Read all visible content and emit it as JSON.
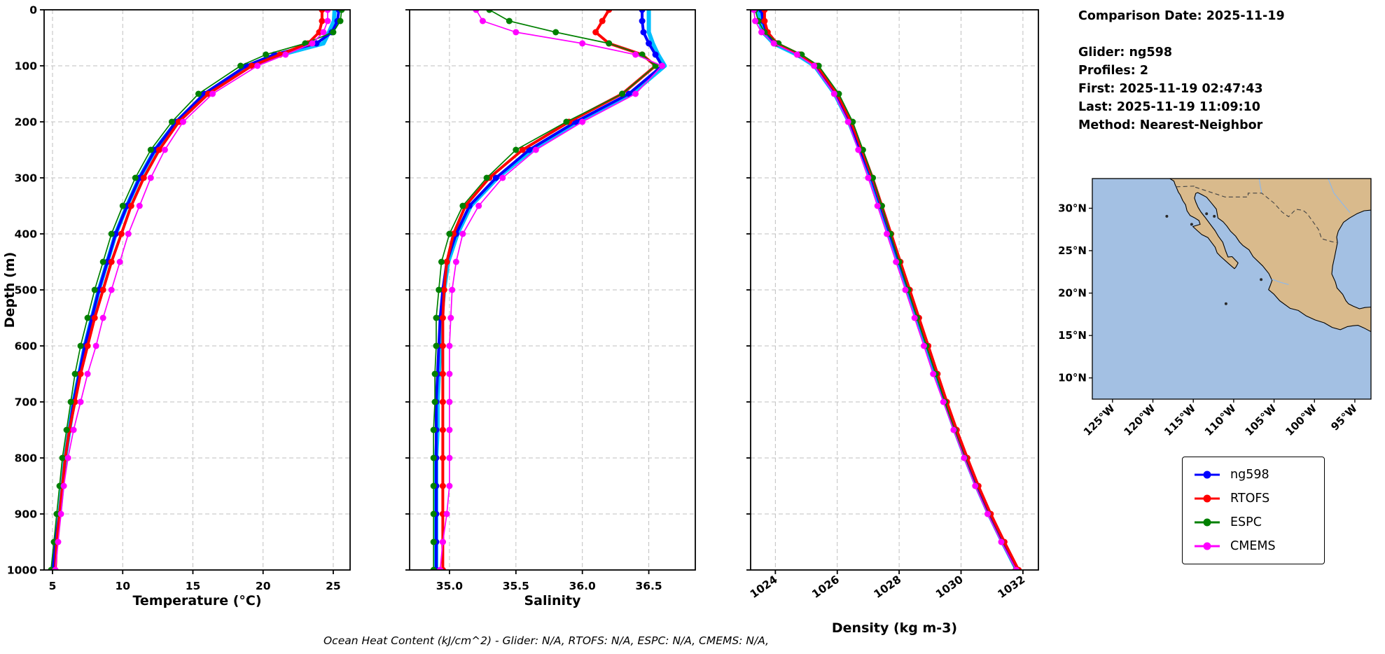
{
  "info_panel": {
    "comparison_date": "Comparison Date: 2025-11-19",
    "glider": "Glider: ng598",
    "profiles": "Profiles: 2",
    "first": "First: 2025-11-19 02:47:43",
    "last": "Last: 2025-11-19 11:09:10",
    "method": "Method: Nearest-Neighbor"
  },
  "caption": "Ocean Heat Content (kJ/cm^2) - Glider: N/A,  RTOFS: N/A,  ESPC: N/A,  CMEMS: N/A,",
  "ylabel": "Depth (m)",
  "ylim": [
    0,
    1000
  ],
  "yticks": [
    {
      "v": 0,
      "label": "0"
    },
    {
      "v": 100,
      "label": "100"
    },
    {
      "v": 200,
      "label": "200"
    },
    {
      "v": 300,
      "label": "300"
    },
    {
      "v": 400,
      "label": "400"
    },
    {
      "v": 500,
      "label": "500"
    },
    {
      "v": 600,
      "label": "600"
    },
    {
      "v": 700,
      "label": "700"
    },
    {
      "v": 800,
      "label": "800"
    },
    {
      "v": 900,
      "label": "900"
    },
    {
      "v": 1000,
      "label": "1000"
    }
  ],
  "depths": [
    0,
    20,
    40,
    60,
    80,
    100,
    150,
    200,
    250,
    300,
    350,
    400,
    450,
    500,
    550,
    600,
    650,
    700,
    750,
    800,
    850,
    900,
    950,
    1000
  ],
  "series_meta": [
    {
      "name": "ng598_raw",
      "color": "#00bfff",
      "line_width": 6,
      "marker_radius": 0,
      "in_legend": false
    },
    {
      "name": "ng598",
      "color": "#0000ff",
      "line_width": 4,
      "marker_radius": 4.5,
      "in_legend": true
    },
    {
      "name": "RTOFS",
      "color": "#ff0000",
      "line_width": 4,
      "marker_radius": 4.5,
      "in_legend": true
    },
    {
      "name": "ESPC",
      "color": "#008000",
      "line_width": 1.7,
      "marker_radius": 4.5,
      "in_legend": true
    },
    {
      "name": "CMEMS",
      "color": "#ff00ff",
      "line_width": 1.7,
      "marker_radius": 4.5,
      "in_legend": true
    }
  ],
  "legend": {
    "entries": [
      {
        "label": "ng598",
        "color": "#0000ff"
      },
      {
        "label": "RTOFS",
        "color": "#ff0000"
      },
      {
        "label": "ESPC",
        "color": "#008000"
      },
      {
        "label": "CMEMS",
        "color": "#ff00ff"
      }
    ]
  },
  "chart_data": [
    {
      "type": "line",
      "name": "temperature",
      "xlabel": "Temperature (°C)",
      "xlim": [
        4.4,
        26.2
      ],
      "xticks": [
        {
          "v": 5,
          "label": "5"
        },
        {
          "v": 10,
          "label": "10"
        },
        {
          "v": 15,
          "label": "15"
        },
        {
          "v": 20,
          "label": "20"
        },
        {
          "v": 25,
          "label": "25"
        }
      ],
      "xtick_rotation": 0,
      "grid": true,
      "series": [
        {
          "name": "ng598_raw",
          "values": [
            25.1,
            25.05,
            24.7,
            24.3,
            21.3,
            19.0,
            15.9,
            13.85,
            12.3,
            11.2,
            10.3,
            9.5,
            8.9,
            8.3,
            7.8,
            7.3,
            6.9,
            6.5,
            6.2,
            5.9,
            5.7,
            5.5,
            5.2,
            5.0
          ]
        },
        {
          "name": "ng598",
          "values": [
            25.4,
            25.3,
            24.9,
            23.8,
            20.8,
            18.8,
            15.8,
            13.8,
            12.3,
            11.2,
            10.3,
            9.5,
            8.9,
            8.3,
            7.8,
            7.3,
            6.9,
            6.5,
            6.2,
            5.9,
            5.7,
            5.5,
            5.2,
            5.0
          ]
        },
        {
          "name": "RTOFS",
          "values": [
            24.2,
            24.2,
            24.0,
            23.2,
            21.2,
            19.2,
            16.1,
            14.0,
            12.6,
            11.5,
            10.6,
            9.9,
            9.2,
            8.6,
            8.0,
            7.5,
            7.0,
            6.6,
            6.2,
            5.9,
            5.7,
            5.5,
            5.3,
            5.2
          ]
        },
        {
          "name": "ESPC",
          "values": [
            25.6,
            25.5,
            25.0,
            23.0,
            20.2,
            18.4,
            15.4,
            13.5,
            12.0,
            10.9,
            10.0,
            9.2,
            8.6,
            8.0,
            7.5,
            7.0,
            6.6,
            6.3,
            6.0,
            5.7,
            5.5,
            5.3,
            5.1,
            4.9
          ]
        },
        {
          "name": "CMEMS",
          "values": [
            24.6,
            24.6,
            24.3,
            23.5,
            21.6,
            19.6,
            16.4,
            14.3,
            13.0,
            12.0,
            11.2,
            10.4,
            9.8,
            9.2,
            8.6,
            8.1,
            7.5,
            7.0,
            6.5,
            6.1,
            5.8,
            5.6,
            5.4,
            5.2
          ]
        }
      ]
    },
    {
      "type": "line",
      "name": "salinity",
      "xlabel": "Salinity",
      "xlim": [
        34.7,
        36.85
      ],
      "xticks": [
        {
          "v": 35.0,
          "label": "35.0"
        },
        {
          "v": 35.5,
          "label": "35.5"
        },
        {
          "v": 36.0,
          "label": "36.0"
        },
        {
          "v": 36.5,
          "label": "36.5"
        }
      ],
      "xtick_rotation": 0,
      "grid": true,
      "series": [
        {
          "name": "ng598_raw",
          "values": [
            36.5,
            36.5,
            36.5,
            36.53,
            36.57,
            36.62,
            36.37,
            35.97,
            35.62,
            35.36,
            35.16,
            35.06,
            34.99,
            34.96,
            34.94,
            34.93,
            34.92,
            34.91,
            34.91,
            34.9,
            34.9,
            34.9,
            34.9,
            34.9
          ]
        },
        {
          "name": "ng598",
          "values": [
            36.45,
            36.45,
            36.46,
            36.5,
            36.55,
            36.6,
            36.35,
            35.95,
            35.6,
            35.35,
            35.15,
            35.05,
            34.98,
            34.95,
            34.93,
            34.92,
            34.91,
            34.9,
            34.9,
            34.9,
            34.9,
            34.9,
            34.9,
            34.9
          ]
        },
        {
          "name": "RTOFS",
          "values": [
            36.2,
            36.15,
            36.1,
            36.2,
            36.45,
            36.55,
            36.3,
            35.9,
            35.55,
            35.3,
            35.12,
            35.03,
            34.98,
            34.96,
            34.95,
            34.95,
            34.95,
            34.95,
            34.95,
            34.95,
            34.95,
            34.95,
            34.95,
            34.95
          ]
        },
        {
          "name": "ESPC",
          "values": [
            35.3,
            35.45,
            35.8,
            36.2,
            36.45,
            36.55,
            36.3,
            35.88,
            35.5,
            35.28,
            35.1,
            35.0,
            34.94,
            34.92,
            34.9,
            34.9,
            34.89,
            34.89,
            34.88,
            34.88,
            34.88,
            34.88,
            34.88,
            34.88
          ]
        },
        {
          "name": "CMEMS",
          "values": [
            35.2,
            35.25,
            35.5,
            36.0,
            36.4,
            36.6,
            36.4,
            36.0,
            35.65,
            35.4,
            35.22,
            35.1,
            35.05,
            35.02,
            35.01,
            35.0,
            35.0,
            35.0,
            35.0,
            35.0,
            35.0,
            34.98,
            34.95,
            34.93
          ]
        }
      ]
    },
    {
      "type": "line",
      "name": "density",
      "xlabel": "Density (kg m-3)",
      "xlim": [
        1023.2,
        1032.5
      ],
      "xticks": [
        {
          "v": 1024,
          "label": "1024"
        },
        {
          "v": 1026,
          "label": "1026"
        },
        {
          "v": 1028,
          "label": "1028"
        },
        {
          "v": 1030,
          "label": "1030"
        },
        {
          "v": 1032,
          "label": "1032"
        }
      ],
      "xtick_rotation": -35,
      "grid": true,
      "series": [
        {
          "name": "ng598_raw",
          "values": [
            1023.45,
            1023.5,
            1023.6,
            1023.95,
            1024.7,
            1025.27,
            1025.92,
            1026.38,
            1026.73,
            1027.08,
            1027.38,
            1027.68,
            1027.98,
            1028.28,
            1028.58,
            1028.88,
            1029.18,
            1029.48,
            1029.8,
            1030.14,
            1030.5,
            1030.9,
            1031.34,
            1031.8
          ]
        },
        {
          "name": "ng598",
          "values": [
            1023.55,
            1023.6,
            1023.7,
            1024.0,
            1024.75,
            1025.3,
            1025.95,
            1026.4,
            1026.75,
            1027.1,
            1027.4,
            1027.7,
            1028.0,
            1028.3,
            1028.6,
            1028.9,
            1029.2,
            1029.5,
            1029.82,
            1030.16,
            1030.52,
            1030.92,
            1031.36,
            1031.82
          ]
        },
        {
          "name": "RTOFS",
          "values": [
            1023.65,
            1023.65,
            1023.75,
            1024.05,
            1024.8,
            1025.35,
            1026.0,
            1026.45,
            1026.8,
            1027.14,
            1027.44,
            1027.74,
            1028.04,
            1028.34,
            1028.64,
            1028.94,
            1029.24,
            1029.54,
            1029.86,
            1030.2,
            1030.56,
            1030.96,
            1031.4,
            1031.86
          ]
        },
        {
          "name": "ESPC",
          "values": [
            1023.35,
            1023.45,
            1023.65,
            1024.1,
            1024.85,
            1025.4,
            1026.05,
            1026.5,
            1026.83,
            1027.15,
            1027.44,
            1027.72,
            1028.0,
            1028.29,
            1028.58,
            1028.88,
            1029.18,
            1029.48,
            1029.79,
            1030.12,
            1030.47,
            1030.87,
            1031.31,
            1031.77
          ]
        },
        {
          "name": "CMEMS",
          "values": [
            1023.3,
            1023.35,
            1023.55,
            1023.95,
            1024.7,
            1025.25,
            1025.9,
            1026.35,
            1026.68,
            1027.0,
            1027.3,
            1027.6,
            1027.9,
            1028.2,
            1028.5,
            1028.8,
            1029.1,
            1029.43,
            1029.76,
            1030.1,
            1030.46,
            1030.86,
            1031.3,
            1031.78
          ]
        }
      ]
    }
  ],
  "map": {
    "extent": {
      "lon_min": -127.5,
      "lon_max": -93.0,
      "lat_min": 7.5,
      "lat_max": 33.5
    },
    "lat_ticks": [
      {
        "v": 30,
        "label": "30°N"
      },
      {
        "v": 25,
        "label": "25°N"
      },
      {
        "v": 20,
        "label": "20°N"
      },
      {
        "v": 15,
        "label": "15°N"
      },
      {
        "v": 10,
        "label": "10°N"
      }
    ],
    "lon_ticks": [
      {
        "v": -125,
        "label": "125°W"
      },
      {
        "v": -120,
        "label": "120°W"
      },
      {
        "v": -115,
        "label": "115°W"
      },
      {
        "v": -110,
        "label": "110°W"
      },
      {
        "v": -105,
        "label": "105°W"
      },
      {
        "v": -100,
        "label": "100°W"
      },
      {
        "v": -95,
        "label": "95°W"
      }
    ],
    "colors": {
      "ocean": "#a3c0e3",
      "land": "#d9ba8c",
      "coast": "#000000",
      "border": "#444444",
      "river": "#8fb8e8",
      "island": "#2a2a2a"
    },
    "land": [
      [
        -117.9,
        33.5
      ],
      [
        -117.4,
        33.2
      ],
      [
        -117.25,
        32.8
      ],
      [
        -117.12,
        32.53
      ],
      [
        -116.85,
        31.9
      ],
      [
        -116.6,
        31.55
      ],
      [
        -116.3,
        30.9
      ],
      [
        -115.95,
        30.4
      ],
      [
        -115.78,
        29.7
      ],
      [
        -115.4,
        29.15
      ],
      [
        -114.9,
        28.9
      ],
      [
        -114.3,
        28.55
      ],
      [
        -114.15,
        28.1
      ],
      [
        -115.05,
        27.85
      ],
      [
        -114.55,
        27.4
      ],
      [
        -113.95,
        26.9
      ],
      [
        -113.2,
        26.55
      ],
      [
        -112.3,
        25.4
      ],
      [
        -112.05,
        24.75
      ],
      [
        -111.65,
        24.35
      ],
      [
        -110.6,
        23.45
      ],
      [
        -109.9,
        22.88
      ],
      [
        -109.7,
        23.1
      ],
      [
        -109.45,
        23.55
      ],
      [
        -110.2,
        24.3
      ],
      [
        -110.7,
        24.25
      ],
      [
        -111.0,
        25.0
      ],
      [
        -111.35,
        26.0
      ],
      [
        -111.9,
        26.7
      ],
      [
        -112.3,
        27.35
      ],
      [
        -112.85,
        28.05
      ],
      [
        -113.55,
        28.95
      ],
      [
        -114.05,
        29.55
      ],
      [
        -114.4,
        30.1
      ],
      [
        -114.68,
        30.7
      ],
      [
        -114.85,
        31.2
      ],
      [
        -114.7,
        31.75
      ],
      [
        -114.45,
        31.85
      ],
      [
        -113.9,
        31.58
      ],
      [
        -113.35,
        31.3
      ],
      [
        -112.7,
        30.55
      ],
      [
        -112.15,
        29.9
      ],
      [
        -111.95,
        28.85
      ],
      [
        -111.3,
        28.4
      ],
      [
        -110.85,
        27.9
      ],
      [
        -110.4,
        27.3
      ],
      [
        -109.75,
        26.7
      ],
      [
        -109.25,
        26.0
      ],
      [
        -108.85,
        25.6
      ],
      [
        -108.1,
        25.1
      ],
      [
        -107.6,
        24.3
      ],
      [
        -106.4,
        23.2
      ],
      [
        -105.65,
        22.3
      ],
      [
        -105.25,
        21.5
      ],
      [
        -105.45,
        20.95
      ],
      [
        -105.68,
        20.4
      ],
      [
        -105.05,
        19.9
      ],
      [
        -104.3,
        19.1
      ],
      [
        -103.0,
        18.2
      ],
      [
        -102.0,
        17.95
      ],
      [
        -101.0,
        17.3
      ],
      [
        -99.9,
        16.83
      ],
      [
        -98.8,
        16.5
      ],
      [
        -97.8,
        15.95
      ],
      [
        -96.8,
        15.68
      ],
      [
        -95.9,
        16.05
      ],
      [
        -95.2,
        16.15
      ],
      [
        -94.6,
        16.2
      ],
      [
        -93.9,
        15.9
      ],
      [
        -93.0,
        15.45
      ],
      [
        -93.0,
        18.35
      ],
      [
        -93.75,
        18.3
      ],
      [
        -94.42,
        18.15
      ],
      [
        -95.2,
        18.45
      ],
      [
        -95.8,
        18.75
      ],
      [
        -96.1,
        19.1
      ],
      [
        -96.5,
        19.85
      ],
      [
        -97.2,
        20.6
      ],
      [
        -97.4,
        21.3
      ],
      [
        -97.85,
        22.25
      ],
      [
        -97.75,
        23.2
      ],
      [
        -97.5,
        24.3
      ],
      [
        -97.15,
        25.95
      ],
      [
        -97.25,
        26.6
      ],
      [
        -97.05,
        27.3
      ],
      [
        -96.4,
        28.35
      ],
      [
        -95.65,
        28.85
      ],
      [
        -94.75,
        29.35
      ],
      [
        -93.85,
        29.7
      ],
      [
        -93.0,
        29.78
      ],
      [
        -93.0,
        33.5
      ]
    ],
    "border": [
      [
        -117.12,
        32.53
      ],
      [
        -114.72,
        32.62
      ],
      [
        -114.8,
        32.5
      ],
      [
        -111.07,
        31.33
      ],
      [
        -108.21,
        31.33
      ],
      [
        -108.21,
        31.78
      ],
      [
        -106.53,
        31.78
      ],
      [
        -105.0,
        30.6
      ],
      [
        -104.0,
        29.55
      ],
      [
        -103.2,
        29.0
      ],
      [
        -102.3,
        29.88
      ],
      [
        -101.4,
        29.75
      ],
      [
        -100.9,
        29.36
      ],
      [
        -99.5,
        27.5
      ],
      [
        -99.1,
        26.4
      ],
      [
        -97.8,
        26.05
      ],
      [
        -97.15,
        25.95
      ]
    ],
    "rivers": [
      [
        [
          -98.3,
          33.5
        ],
        [
          -97.6,
          31.8
        ],
        [
          -96.5,
          30.5
        ],
        [
          -95.6,
          29.5
        ]
      ],
      [
        [
          -106.53,
          31.78
        ],
        [
          -106.7,
          32.6
        ],
        [
          -106.85,
          33.5
        ]
      ],
      [
        [
          -103.2,
          21.0
        ],
        [
          -104.3,
          21.3
        ],
        [
          -105.3,
          21.65
        ]
      ]
    ],
    "islands": [
      [
        -118.28,
        29.05
      ],
      [
        -115.2,
        28.1
      ],
      [
        -112.4,
        29.05
      ],
      [
        -113.35,
        29.35
      ],
      [
        -106.6,
        21.6
      ],
      [
        -110.95,
        18.75
      ]
    ]
  }
}
